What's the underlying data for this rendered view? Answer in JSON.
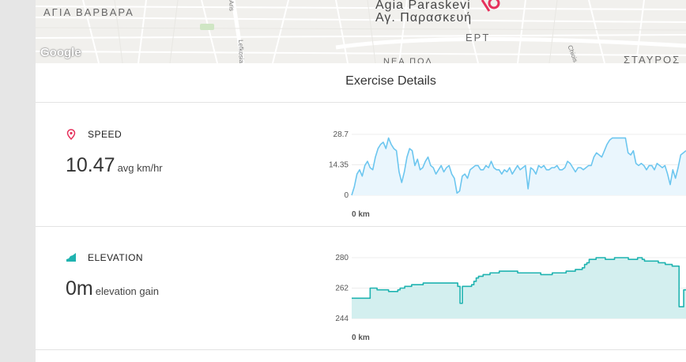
{
  "map": {
    "labels": [
      "ΑΓΙΑ ΒΑΡΒΑΡΑ",
      "ΕΡΤ",
      "ΣΤΑΥΡΟΣ",
      "ΝΕΑ ΠΟΛ"
    ],
    "place_name_latin": "Agia Paraskevi",
    "place_name_greek": "Αγ. Παρασκευή",
    "streets": [
      "Lefkosias",
      "Aris",
      "Chiois"
    ],
    "attribution": "Google"
  },
  "header": {
    "title": "Exercise Details"
  },
  "speed": {
    "label": "SPEED",
    "value": "10.47",
    "unit": "avg km/hr",
    "icon": "location-pin-icon",
    "color": "#6cc6ef"
  },
  "elevation": {
    "label": "ELEVATION",
    "value": "0",
    "unit_big": "m",
    "unit": "elevation gain",
    "icon": "elevation-icon",
    "color": "#1fb3b0"
  },
  "chart_data": [
    {
      "type": "area",
      "series": [
        {
          "values": [
            0,
            4,
            10,
            12,
            9,
            14,
            16,
            13,
            12,
            18,
            22,
            24,
            25,
            22,
            27,
            24,
            22,
            21,
            11,
            6,
            11,
            18,
            22,
            21,
            14,
            17,
            12,
            13,
            16,
            18,
            14,
            13,
            10,
            12,
            14,
            11,
            13,
            14,
            10,
            8,
            1,
            2,
            9,
            10,
            8,
            12,
            13,
            14,
            14,
            12,
            12,
            14,
            13,
            16,
            13,
            12,
            12,
            10,
            12,
            11,
            13,
            10,
            12,
            14,
            12,
            13,
            14,
            3,
            13,
            12,
            10,
            14,
            13,
            14,
            12,
            12,
            13,
            13,
            14,
            12,
            12,
            13,
            16,
            15,
            13,
            11,
            13,
            13,
            12,
            13,
            14,
            14,
            18,
            20,
            19,
            18,
            21,
            24,
            26,
            27,
            27,
            27,
            27,
            27,
            27,
            20,
            19,
            21,
            15,
            14,
            15,
            14,
            12,
            14,
            14,
            12,
            15,
            14,
            13,
            14,
            10,
            5,
            12,
            8,
            13,
            19,
            20,
            21
          ]
        }
      ],
      "ylim": [
        0,
        28.7
      ],
      "yticks": [
        "28.7",
        "14.35",
        "0"
      ],
      "xlabel": "0 km"
    },
    {
      "type": "area",
      "series": [
        {
          "values": [
            256,
            256,
            256,
            256,
            256,
            256,
            256,
            256,
            262,
            262,
            262,
            261,
            261,
            261,
            261,
            261,
            260,
            260,
            260,
            260,
            261,
            262,
            262,
            263,
            263,
            263,
            264,
            264,
            264,
            264,
            264,
            265,
            265,
            265,
            265,
            265,
            265,
            265,
            265,
            265,
            265,
            265,
            265,
            265,
            265,
            265,
            263,
            253,
            263,
            263,
            263,
            263,
            264,
            266,
            268,
            269,
            269,
            270,
            270,
            270,
            271,
            271,
            271,
            271,
            272,
            272,
            272,
            272,
            272,
            272,
            272,
            272,
            271,
            271,
            271,
            271,
            271,
            271,
            271,
            271,
            271,
            271,
            270,
            270,
            270,
            270,
            270,
            271,
            271,
            271,
            271,
            271,
            271,
            272,
            272,
            272,
            272,
            273,
            273,
            273,
            274,
            276,
            277,
            279,
            279,
            279,
            280,
            280,
            280,
            280,
            279,
            279,
            279,
            279,
            280,
            280,
            280,
            280,
            280,
            280,
            279,
            279,
            279,
            279,
            280,
            280,
            279,
            278,
            278,
            278,
            278,
            278,
            278,
            277,
            277,
            277,
            276,
            276,
            276,
            275,
            275,
            275,
            251,
            251,
            261,
            261
          ]
        }
      ],
      "ylim": [
        244,
        280
      ],
      "yticks": [
        "280",
        "262",
        "244"
      ],
      "xlabel": "0 km"
    }
  ]
}
